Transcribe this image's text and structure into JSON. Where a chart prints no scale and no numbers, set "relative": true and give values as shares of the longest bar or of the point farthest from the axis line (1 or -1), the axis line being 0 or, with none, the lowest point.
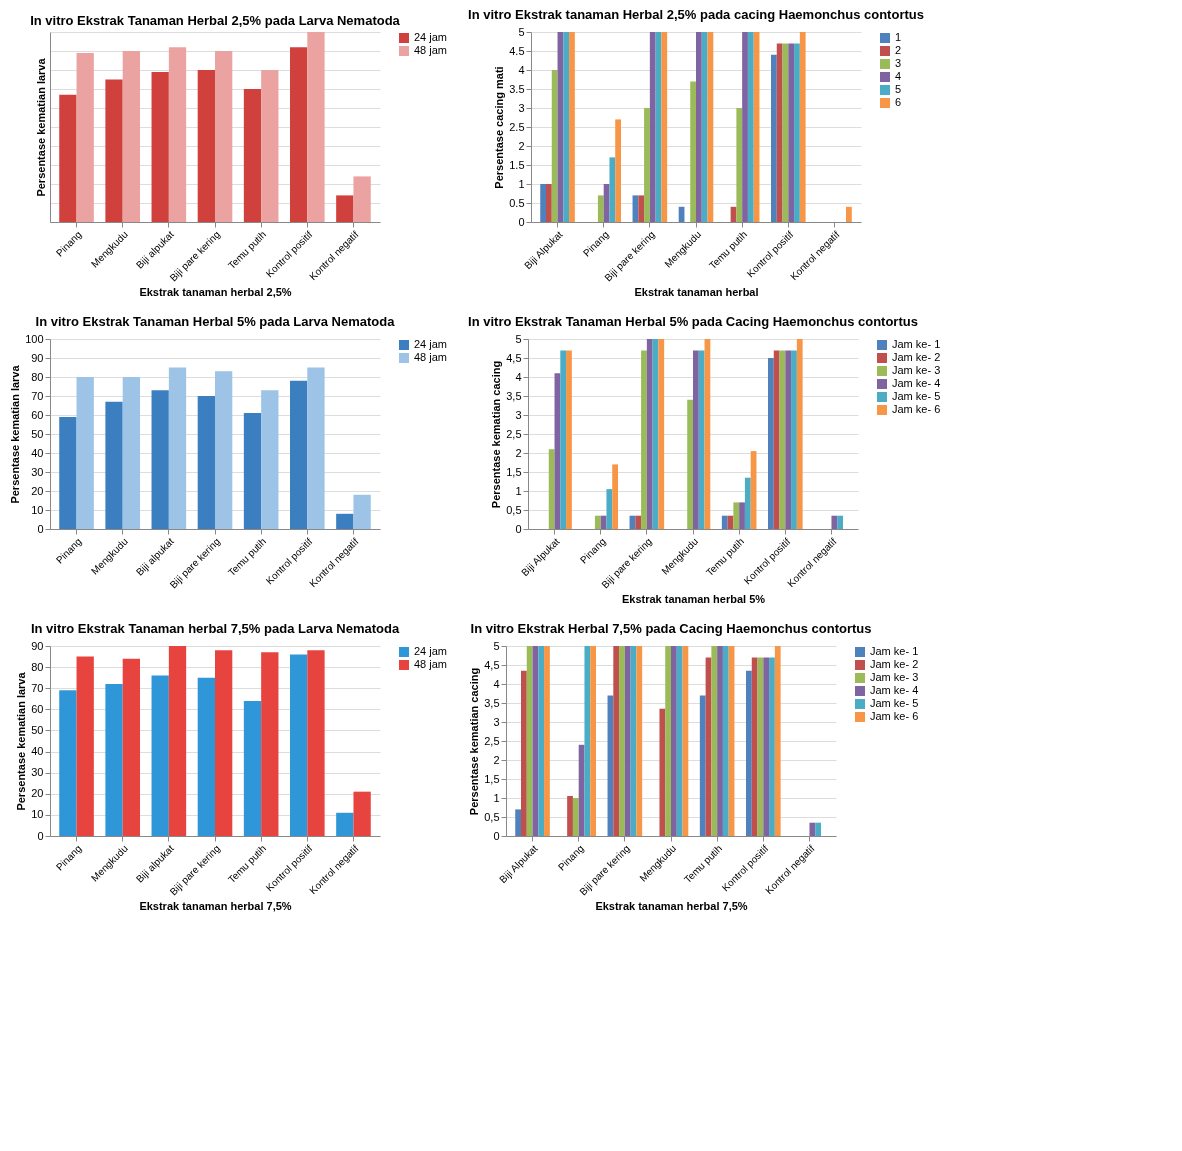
{
  "chart_data": [
    {
      "type": "bar",
      "title": "In vitro Ekstrak Tanaman Herbal 2,5% pada Larva Nematoda",
      "xlabel": "Ekstrak tanaman herbal 2,5%",
      "ylabel": "Persentase kematian larva",
      "relative": true,
      "grid": "y",
      "legend": "right",
      "categories": [
        "Pinang",
        "Mengkudu",
        "Biji alpukat",
        "Biji pare kering",
        "Temu putih",
        "Kontrol positif",
        "Kontrol negatif"
      ],
      "series": [
        {
          "name": "24 jam",
          "color": "#d0403c",
          "values": [
            0.67,
            0.75,
            0.79,
            0.8,
            0.7,
            0.92,
            0.14
          ]
        },
        {
          "name": "48 jam",
          "color": "#eba3a1",
          "values": [
            0.89,
            0.9,
            0.92,
            0.9,
            0.8,
            1,
            0.24
          ]
        }
      ]
    },
    {
      "type": "bar",
      "title": "In vitro Ekstrak tanaman Herbal 2,5% pada cacing Haemonchus contortus",
      "xlabel": "Ekstrak tanaman herbal",
      "ylabel": "Persentase cacing mati",
      "ylim": [
        0,
        5
      ],
      "yticks": [
        0,
        0.5,
        1,
        1.5,
        2,
        2.5,
        3,
        3.5,
        4,
        4.5,
        5
      ],
      "grid": "y",
      "legend": "right",
      "categories": [
        "Biji Alpukat",
        "Pinang",
        "Biji pare kering",
        "Mengkudu",
        "Temu putih",
        "Kontrol positif",
        "Kontrol negatif"
      ],
      "series": [
        {
          "name": "1",
          "color": "#4f81bd",
          "values": [
            1,
            0,
            0.7,
            0.4,
            0,
            4.4,
            0
          ]
        },
        {
          "name": "2",
          "color": "#c0504d",
          "values": [
            1,
            0,
            0.7,
            0,
            0.4,
            4.7,
            0
          ]
        },
        {
          "name": "3",
          "color": "#9bbb59",
          "values": [
            4,
            0.7,
            3,
            3.7,
            3,
            4.7,
            0
          ]
        },
        {
          "name": "4",
          "color": "#8064a2",
          "values": [
            5,
            1,
            5,
            5,
            5,
            4.7,
            0
          ]
        },
        {
          "name": "5",
          "color": "#4bacc6",
          "values": [
            5,
            1.7,
            5,
            5,
            5,
            4.7,
            0
          ]
        },
        {
          "name": "6",
          "color": "#f79646",
          "values": [
            5,
            2.7,
            5,
            5,
            5,
            5,
            0.4
          ]
        }
      ]
    },
    {
      "type": "bar",
      "title": "In vitro Ekstrak Tanaman Herbal 5% pada Larva Nematoda",
      "ylabel": "Persentase kematian larva",
      "ylim": [
        0,
        100
      ],
      "yticks": [
        0,
        10,
        20,
        30,
        40,
        50,
        60,
        70,
        80,
        90,
        100
      ],
      "grid": "y",
      "legend": "right",
      "categories": [
        "Pinang",
        "Mengkudu",
        "Biji alpukat",
        "Biji pare kering",
        "Temu putih",
        "Kontrol positif",
        "Kontrol negatif"
      ],
      "series": [
        {
          "name": "24 jam",
          "color": "#3c7fc0",
          "values": [
            59,
            67,
            73,
            70,
            61,
            78,
            8
          ]
        },
        {
          "name": "48 jam",
          "color": "#9dc3e6",
          "values": [
            80,
            80,
            85,
            83,
            73,
            85,
            18
          ]
        }
      ]
    },
    {
      "type": "bar",
      "title": "In vitro Ekstrak Tanaman Herbal 5% pada Cacing Haemonchus contortus",
      "xlabel": "Ekstrak tanaman herbal 5%",
      "ylabel": "Persentase kematian cacing",
      "ylim": [
        0,
        5
      ],
      "yticks": [
        0,
        {
          "value": 0.5,
          "label": "0,5"
        },
        1,
        {
          "value": 1.5,
          "label": "1,5"
        },
        2,
        {
          "value": 2.5,
          "label": "2,5"
        },
        3,
        {
          "value": 3.5,
          "label": "3,5"
        },
        4,
        {
          "value": 4.5,
          "label": "4,5"
        },
        5
      ],
      "grid": "y",
      "legend": "right",
      "categories": [
        "Biji Alpukat",
        "Pinang",
        "Biji pare kering",
        "Mengkudu",
        "Temu putih",
        "Kontrol positif",
        "Kontrol negatif"
      ],
      "series": [
        {
          "name": "Jam ke- 1",
          "color": "#4f81bd",
          "values": [
            0,
            0,
            0.35,
            0,
            0.35,
            4.5,
            0
          ]
        },
        {
          "name": "Jam ke- 2",
          "color": "#c0504d",
          "values": [
            0,
            0,
            0.35,
            0,
            0.35,
            4.7,
            0
          ]
        },
        {
          "name": "Jam ke- 3",
          "color": "#9bbb59",
          "values": [
            2.1,
            0.35,
            4.7,
            3.4,
            0.7,
            4.7,
            0
          ]
        },
        {
          "name": "Jam ke- 4",
          "color": "#8064a2",
          "values": [
            4.1,
            0.35,
            5,
            4.7,
            0.7,
            4.7,
            0.35
          ]
        },
        {
          "name": "Jam ke- 5",
          "color": "#4bacc6",
          "values": [
            4.7,
            1.05,
            5,
            4.7,
            1.35,
            4.7,
            0.35
          ]
        },
        {
          "name": "Jam ke- 6",
          "color": "#f79646",
          "values": [
            4.7,
            1.7,
            5,
            5,
            2.05,
            5,
            0
          ]
        }
      ]
    },
    {
      "type": "bar",
      "title": "In vitro Ekstrak Tanaman herbal 7,5% pada Larva Nematoda",
      "xlabel": "Ekstrak tanaman herbal 7,5%",
      "ylabel": "Persentase kematian larva",
      "ylim": [
        0,
        90
      ],
      "yticks": [
        0,
        10,
        20,
        30,
        40,
        50,
        60,
        70,
        80,
        90
      ],
      "grid": "y",
      "legend": "right",
      "categories": [
        "Pinang",
        "Mengkudu",
        "Biji alpukat",
        "Biji pare kering",
        "Temu putih",
        "Kontrol positif",
        "Kontrol negatif"
      ],
      "series": [
        {
          "name": "24 jam",
          "color": "#2f97d8",
          "values": [
            69,
            72,
            76,
            75,
            64,
            86,
            11
          ]
        },
        {
          "name": "48 jam",
          "color": "#e8443f",
          "values": [
            85,
            84,
            90,
            88,
            87,
            88,
            21
          ]
        }
      ]
    },
    {
      "type": "bar",
      "title": "In vitro Ekstrak Herbal 7,5% pada Cacing Haemonchus contortus",
      "xlabel": "Ekstrak tanaman herbal 7,5%",
      "ylabel": "Persentase kematian cacing",
      "ylim": [
        0,
        5
      ],
      "yticks": [
        0,
        {
          "value": 0.5,
          "label": "0,5"
        },
        1,
        {
          "value": 1.5,
          "label": "1,5"
        },
        2,
        {
          "value": 2.5,
          "label": "2,5"
        },
        3,
        {
          "value": 3.5,
          "label": "3,5"
        },
        4,
        {
          "value": 4.5,
          "label": "4,5"
        },
        5
      ],
      "grid": "y",
      "legend": "right",
      "categories": [
        "Biji Alpukat",
        "Pinang",
        "Biji pare kering",
        "Mengkudu",
        "Temu putih",
        "Kontrol positif",
        "Kontrol negatif"
      ],
      "series": [
        {
          "name": "Jam ke- 1",
          "color": "#4f81bd",
          "values": [
            0.7,
            0,
            3.7,
            0,
            3.7,
            4.35,
            0
          ]
        },
        {
          "name": "Jam ke- 2",
          "color": "#c0504d",
          "values": [
            4.35,
            1.05,
            5,
            3.35,
            4.7,
            4.7,
            0
          ]
        },
        {
          "name": "Jam ke- 3",
          "color": "#9bbb59",
          "values": [
            5,
            1,
            5,
            5,
            5,
            4.7,
            0
          ]
        },
        {
          "name": "Jam ke- 4",
          "color": "#8064a2",
          "values": [
            5,
            2.4,
            5,
            5,
            5,
            4.7,
            0.35
          ]
        },
        {
          "name": "Jam ke- 5",
          "color": "#4bacc6",
          "values": [
            5,
            5,
            5,
            5,
            5,
            4.7,
            0.35
          ]
        },
        {
          "name": "Jam ke- 6",
          "color": "#f79646",
          "values": [
            5,
            5,
            5,
            5,
            5,
            5,
            0
          ]
        }
      ]
    }
  ]
}
